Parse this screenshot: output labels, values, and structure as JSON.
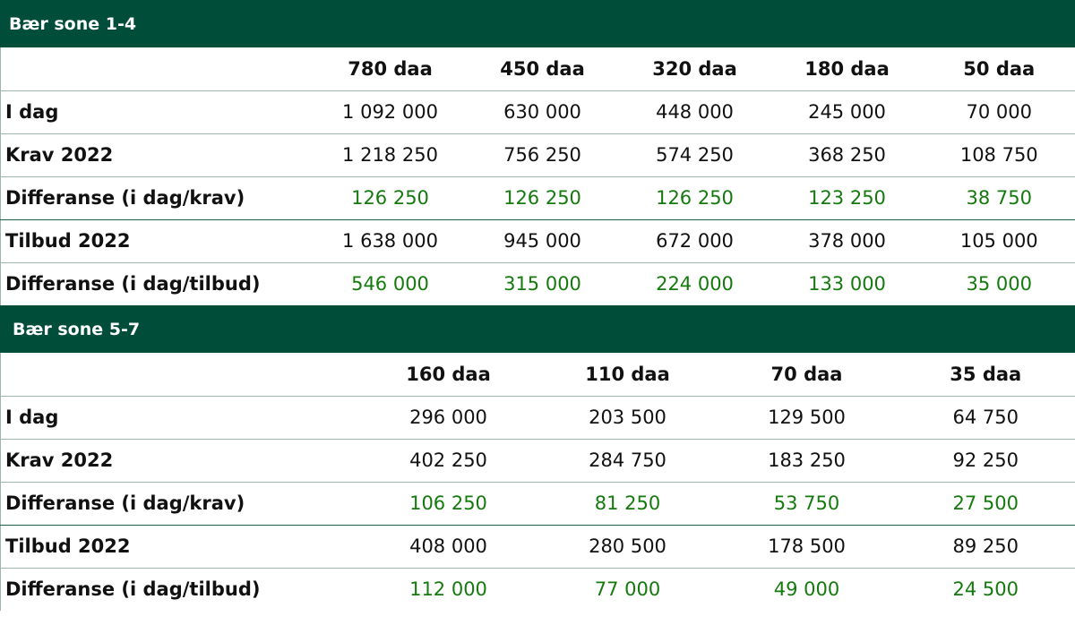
{
  "sections": [
    {
      "title": "Bær sone 1-4",
      "columns": [
        "780 daa",
        "450 daa",
        "320 daa",
        "180 daa",
        "50 daa"
      ],
      "rows": [
        {
          "label": "I dag",
          "values": [
            "1 092 000",
            "630 000",
            "448 000",
            "245 000",
            "70 000"
          ]
        },
        {
          "label": "Krav 2022",
          "values": [
            "1 218 250",
            "756 250",
            "574 250",
            "368 250",
            "108 750"
          ]
        },
        {
          "label": "Differanse (i dag/krav)",
          "values": [
            "126 250",
            "126 250",
            "126 250",
            "123 250",
            "38 750"
          ]
        },
        {
          "label": "Tilbud 2022",
          "values": [
            "1 638 000",
            "945 000",
            "672 000",
            "378 000",
            "105 000"
          ]
        },
        {
          "label": "Differanse (i dag/tilbud)",
          "values": [
            "546 000",
            "315 000",
            "224 000",
            "133 000",
            "35 000"
          ]
        }
      ]
    },
    {
      "title": "Bær sone 5-7",
      "columns": [
        "160 daa",
        "110 daa",
        "70 daa",
        "35 daa"
      ],
      "rows": [
        {
          "label": "I dag",
          "values": [
            "296 000",
            "203 500",
            "129 500",
            "64 750"
          ]
        },
        {
          "label": "Krav 2022",
          "values": [
            "402 250",
            "284 750",
            "183 250",
            "92 250"
          ]
        },
        {
          "label": "Differanse (i dag/krav)",
          "values": [
            "106 250",
            "81 250",
            "53 750",
            "27 500"
          ]
        },
        {
          "label": "Tilbud 2022",
          "values": [
            "408 000",
            "280 500",
            "178 500",
            "89 250"
          ]
        },
        {
          "label": "Differanse (i dag/tilbud)",
          "values": [
            "112 000",
            "77 000",
            "49 000",
            "24 500"
          ]
        }
      ]
    }
  ],
  "colors": {
    "header_bg": "#004d3a",
    "diff_text": "#157a0e"
  }
}
